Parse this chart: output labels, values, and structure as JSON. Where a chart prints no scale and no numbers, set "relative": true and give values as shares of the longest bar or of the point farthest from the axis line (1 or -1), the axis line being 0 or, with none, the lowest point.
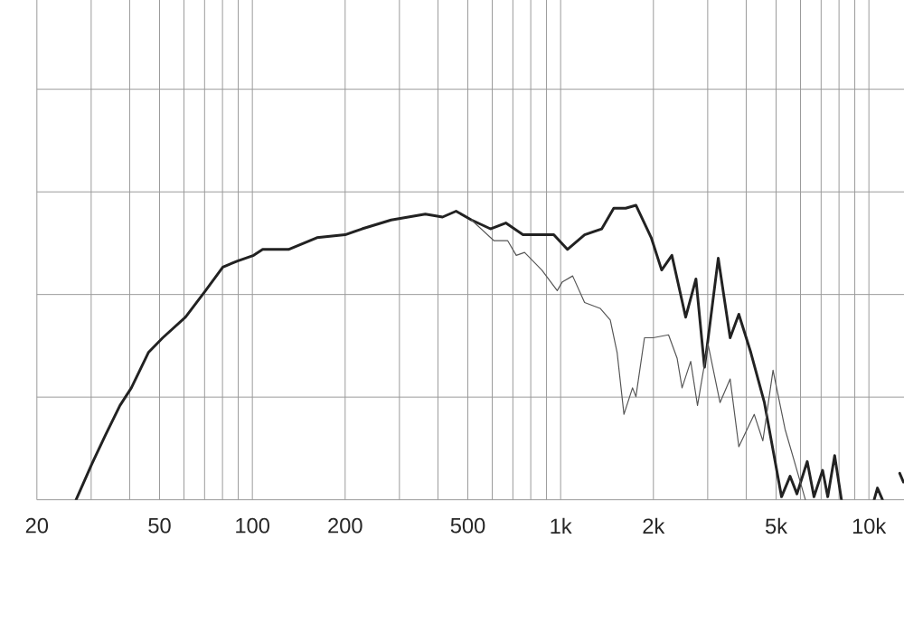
{
  "chart_data": {
    "type": "line",
    "relative": true,
    "log": "x",
    "grid": true,
    "xlim": [
      20,
      13000
    ],
    "xticks": [
      20,
      {
        "value": 30,
        "label": null
      },
      {
        "value": 40,
        "label": null
      },
      50,
      {
        "value": 60,
        "label": null
      },
      {
        "value": 70,
        "label": null
      },
      {
        "value": 80,
        "label": null
      },
      {
        "value": 90,
        "label": null
      },
      100,
      200,
      {
        "value": 300,
        "label": null
      },
      {
        "value": 400,
        "label": null
      },
      500,
      {
        "value": 600,
        "label": null
      },
      {
        "value": 700,
        "label": null
      },
      {
        "value": 800,
        "label": null
      },
      {
        "value": 900,
        "label": null
      },
      {
        "value": 1000,
        "label": "1k"
      },
      {
        "value": 2000,
        "label": "2k"
      },
      {
        "value": 3000,
        "label": null
      },
      {
        "value": 4000,
        "label": null
      },
      {
        "value": 5000,
        "label": "5k"
      },
      {
        "value": 6000,
        "label": null
      },
      {
        "value": 7000,
        "label": null
      },
      {
        "value": 8000,
        "label": null
      },
      {
        "value": 9000,
        "label": null
      },
      {
        "value": 10000,
        "label": "10k"
      }
    ],
    "series": [
      {
        "color": "#222222",
        "x": [
          26.8,
          30.1,
          33.4,
          37.2,
          40.5,
          46,
          51.2,
          60.7,
          70.5,
          80.2,
          89.1,
          101,
          108,
          131,
          162,
          200,
          227,
          282,
          364,
          414,
          458,
          514,
          592,
          664,
          755,
          815,
          950,
          1052,
          1196,
          1360,
          1487,
          1626,
          1755,
          1968,
          2127,
          2296,
          2545,
          2748,
          2929,
          3246,
          3548,
          3785,
          4140,
          4582,
          5208,
          5550,
          5843,
          6310,
          6637,
          7079,
          7356,
          7745,
          8147,
          8300,
          10400,
          10660,
          11070,
          11400,
          12590,
          12950
        ],
        "values": [
          0,
          0.12,
          0.22,
          0.32,
          0.38,
          0.5,
          0.55,
          0.62,
          0.71,
          0.79,
          0.81,
          0.83,
          0.85,
          0.85,
          0.89,
          0.9,
          0.92,
          0.95,
          0.97,
          0.96,
          0.98,
          0.95,
          0.92,
          0.94,
          0.9,
          0.9,
          0.9,
          0.85,
          0.9,
          0.92,
          0.99,
          0.99,
          1,
          0.89,
          0.78,
          0.83,
          0.62,
          0.75,
          0.45,
          0.82,
          0.55,
          0.63,
          0.5,
          0.33,
          0.01,
          0.08,
          0.02,
          0.13,
          0.01,
          0.1,
          0.01,
          0.15,
          0,
          null,
          0,
          0.04,
          0,
          null,
          0.09,
          0.06
        ]
      },
      {
        "color": "#555555",
        "x": [
          514,
          607,
          673,
          718,
          764,
          869,
          975,
          1013,
          1094,
          1196,
          1343,
          1449,
          1525,
          1605,
          1711,
          1755,
          1871,
          1995,
          2239,
          2388,
          2477,
          2642,
          2780,
          3006,
          3289,
          3548,
          3785,
          4246,
          4529,
          4887,
          5345,
          5843,
          6223
        ],
        "values": [
          0.95,
          0.88,
          0.88,
          0.83,
          0.84,
          0.78,
          0.71,
          0.74,
          0.76,
          0.67,
          0.65,
          0.61,
          0.5,
          0.29,
          0.38,
          0.35,
          0.55,
          0.55,
          0.56,
          0.48,
          0.38,
          0.47,
          0.32,
          0.53,
          0.33,
          0.41,
          0.18,
          0.29,
          0.2,
          0.44,
          0.24,
          0.1,
          0
        ]
      }
    ]
  }
}
